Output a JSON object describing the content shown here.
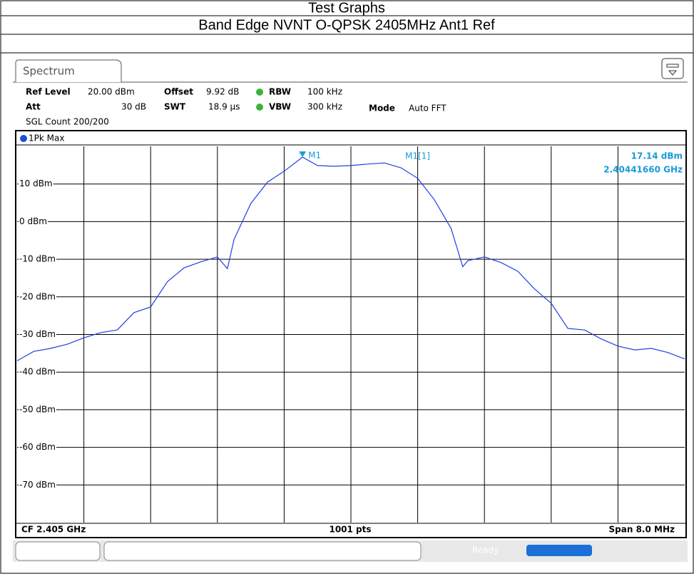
{
  "header": {
    "title": "Test Graphs",
    "subtitle": "Band Edge NVNT O-QPSK 2405MHz Ant1 Ref"
  },
  "settings": {
    "tab": "Spectrum",
    "ref_level_label": "Ref Level",
    "ref_level": "20.00 dBm",
    "offset_label": "Offset",
    "offset": "9.92 dB",
    "rbw_label": "RBW",
    "rbw": "100 kHz",
    "att_label": "Att",
    "att": "30 dB",
    "swt_label": "SWT",
    "swt": "18.9 µs",
    "vbw_label": "VBW",
    "vbw": "300 kHz",
    "mode_label": "Mode",
    "mode": "Auto FFT",
    "sgl_count": "SGL Count 200/200",
    "trace_label": "1Pk Max",
    "cf": "CF 2.405 GHz",
    "points": "1001 pts",
    "span": "Span 8.0 MHz",
    "status": "Ready"
  },
  "chart_data": {
    "type": "line",
    "x": [
      2.401,
      2.4012,
      2.4014,
      2.4016,
      2.4018,
      2.402,
      2.4022,
      2.4024,
      2.4026,
      2.4028,
      2.403,
      2.4032,
      2.4034,
      2.40352,
      2.4036,
      2.4038,
      2.404,
      2.4042,
      2.40442,
      2.4046,
      2.4048,
      2.405,
      2.4052,
      2.4054,
      2.4056,
      2.4058,
      2.406,
      2.4062,
      2.40634,
      2.4064,
      2.4066,
      2.4068,
      2.407,
      2.4072,
      2.4074,
      2.4076,
      2.4078,
      2.408,
      2.4082,
      2.4084,
      2.4086,
      2.4088,
      2.409
    ],
    "series": [
      {
        "color": "#2040e0",
        "values": [
          -37,
          -34.5,
          -33.7,
          -32.6,
          -30.9,
          -29.5,
          -28.8,
          -24.2,
          -22.7,
          -16,
          -12.3,
          -10.7,
          -9.4,
          -12.5,
          -4.7,
          4.8,
          10.5,
          13.4,
          17.14,
          14.9,
          14.7,
          14.9,
          15.3,
          15.6,
          14.3,
          11.5,
          5.8,
          -1.8,
          -12,
          -10.4,
          -9.4,
          -10.9,
          -13.2,
          -17.9,
          -21.7,
          -28.4,
          -28.8,
          -31.2,
          -33.1,
          -34.1,
          -33.7,
          -34.8,
          -36.5
        ]
      }
    ],
    "xlim": [
      2.401,
      2.409
    ],
    "ylim": [
      -80,
      20
    ],
    "yticks": [
      {
        "value": 10,
        "label": "10 dBm"
      },
      {
        "value": 0,
        "label": "0 dBm"
      },
      {
        "value": -10,
        "label": "-10 dBm"
      },
      {
        "value": -20,
        "label": "-20 dBm"
      },
      {
        "value": -30,
        "label": "-30 dBm"
      },
      {
        "value": -40,
        "label": "-40 dBm"
      },
      {
        "value": -50,
        "label": "-50 dBm"
      },
      {
        "value": -60,
        "label": "-60 dBm"
      },
      {
        "value": -70,
        "label": "-70 dBm"
      }
    ],
    "grid": true,
    "marker": {
      "label": "M1",
      "readout": "M1[1]",
      "x": 2.40442,
      "y": 17.14,
      "y_label": "17.14 dBm",
      "x_label": "2.40441660 GHz",
      "color": "#1a9ad6"
    }
  }
}
